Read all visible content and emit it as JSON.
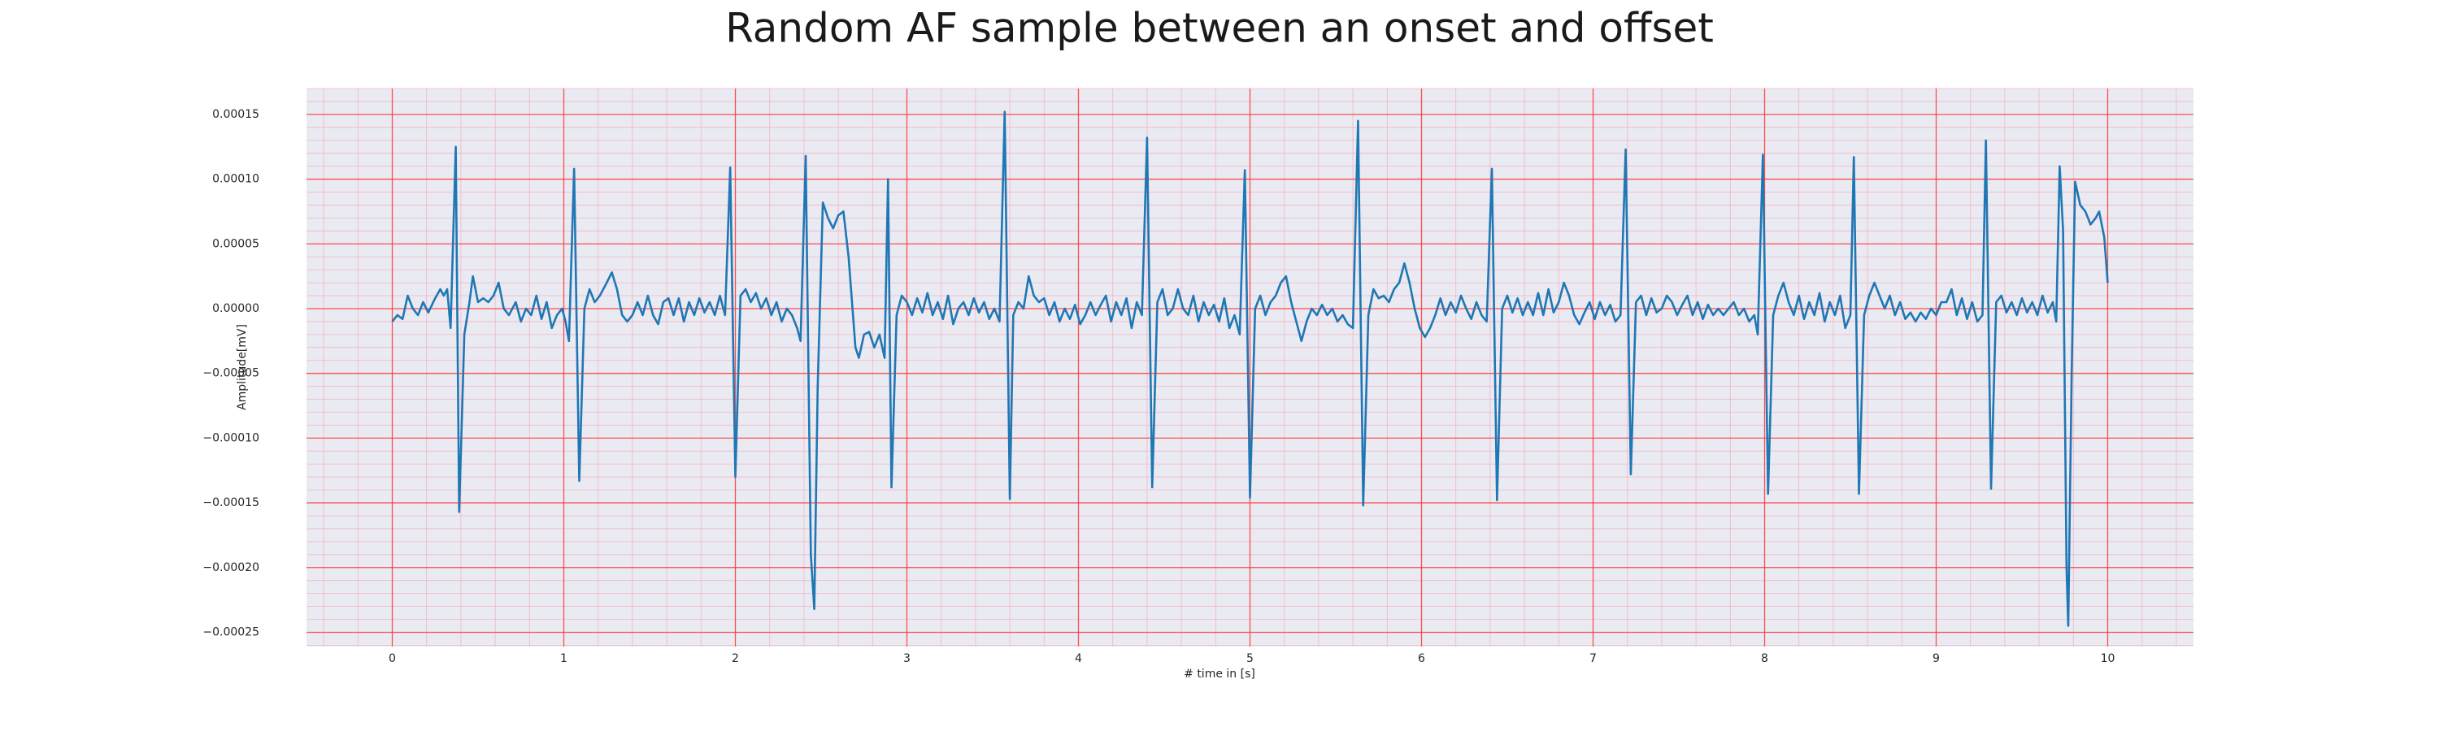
{
  "chart_data": {
    "type": "line",
    "title": "Random AF sample between an onset and offset",
    "xlabel": "# time in [s]",
    "ylabel": "Amplitude[mV]",
    "color": "#1f77b4",
    "grid": true,
    "minor_grid": true,
    "xlim": [
      -0.5,
      10.5
    ],
    "ylim": [
      -0.000261,
      0.00017
    ],
    "xticks": [
      0,
      1,
      2,
      3,
      4,
      5,
      6,
      7,
      8,
      9,
      10
    ],
    "yticks": [
      0.00015,
      {
        "value": 0.0001,
        "label": "0.00010"
      },
      5e-05,
      {
        "value": 0,
        "label": "0.00000"
      },
      {
        "value": -5e-05,
        "label": "−0.00005"
      },
      {
        "value": -0.0001,
        "label": "−0.00010"
      },
      {
        "value": -0.00015,
        "label": "−0.00015"
      },
      {
        "value": -0.0002,
        "label": "−0.00020"
      },
      {
        "value": -0.00025,
        "label": "−0.00025"
      }
    ],
    "x": [
      0.0,
      0.03,
      0.06,
      0.09,
      0.12,
      0.15,
      0.18,
      0.21,
      0.25,
      0.28,
      0.3,
      0.32,
      0.34,
      0.37,
      0.39,
      0.42,
      0.45,
      0.47,
      0.5,
      0.53,
      0.56,
      0.59,
      0.62,
      0.65,
      0.68,
      0.72,
      0.75,
      0.78,
      0.81,
      0.84,
      0.87,
      0.9,
      0.93,
      0.96,
      0.99,
      1.01,
      1.03,
      1.06,
      1.09,
      1.12,
      1.15,
      1.18,
      1.21,
      1.25,
      1.28,
      1.31,
      1.34,
      1.37,
      1.4,
      1.43,
      1.46,
      1.49,
      1.52,
      1.55,
      1.58,
      1.61,
      1.64,
      1.67,
      1.7,
      1.73,
      1.76,
      1.79,
      1.82,
      1.85,
      1.88,
      1.91,
      1.94,
      1.97,
      2.0,
      2.03,
      2.06,
      2.09,
      2.12,
      2.15,
      2.18,
      2.21,
      2.24,
      2.27,
      2.3,
      2.33,
      2.36,
      2.38,
      2.41,
      2.44,
      2.46,
      2.48,
      2.51,
      2.54,
      2.57,
      2.6,
      2.63,
      2.66,
      2.7,
      2.72,
      2.75,
      2.78,
      2.81,
      2.84,
      2.87,
      2.89,
      2.91,
      2.94,
      2.97,
      3.0,
      3.03,
      3.06,
      3.09,
      3.12,
      3.15,
      3.18,
      3.21,
      3.24,
      3.27,
      3.3,
      3.33,
      3.36,
      3.39,
      3.42,
      3.45,
      3.48,
      3.51,
      3.54,
      3.57,
      3.6,
      3.62,
      3.65,
      3.68,
      3.71,
      3.74,
      3.77,
      3.8,
      3.83,
      3.86,
      3.89,
      3.92,
      3.95,
      3.98,
      4.01,
      4.04,
      4.07,
      4.1,
      4.13,
      4.16,
      4.19,
      4.22,
      4.25,
      4.28,
      4.31,
      4.34,
      4.37,
      4.4,
      4.43,
      4.46,
      4.49,
      4.52,
      4.55,
      4.58,
      4.61,
      4.64,
      4.67,
      4.7,
      4.73,
      4.76,
      4.79,
      4.82,
      4.85,
      4.88,
      4.91,
      4.94,
      4.97,
      5.0,
      5.03,
      5.06,
      5.09,
      5.12,
      5.15,
      5.18,
      5.21,
      5.24,
      5.27,
      5.3,
      5.33,
      5.36,
      5.39,
      5.42,
      5.45,
      5.48,
      5.51,
      5.54,
      5.57,
      5.6,
      5.63,
      5.66,
      5.69,
      5.72,
      5.75,
      5.78,
      5.81,
      5.84,
      5.87,
      5.9,
      5.93,
      5.96,
      5.99,
      6.02,
      6.05,
      6.08,
      6.11,
      6.14,
      6.17,
      6.2,
      6.23,
      6.26,
      6.29,
      6.32,
      6.35,
      6.38,
      6.41,
      6.44,
      6.47,
      6.5,
      6.53,
      6.56,
      6.59,
      6.62,
      6.65,
      6.68,
      6.71,
      6.74,
      6.77,
      6.8,
      6.83,
      6.86,
      6.89,
      6.92,
      6.95,
      6.98,
      7.01,
      7.04,
      7.07,
      7.1,
      7.13,
      7.16,
      7.19,
      7.22,
      7.25,
      7.28,
      7.31,
      7.34,
      7.37,
      7.4,
      7.43,
      7.46,
      7.49,
      7.52,
      7.55,
      7.58,
      7.61,
      7.64,
      7.67,
      7.7,
      7.73,
      7.76,
      7.79,
      7.82,
      7.85,
      7.88,
      7.91,
      7.94,
      7.96,
      7.99,
      8.02,
      8.05,
      8.08,
      8.11,
      8.14,
      8.17,
      8.2,
      8.23,
      8.26,
      8.29,
      8.32,
      8.35,
      8.38,
      8.41,
      8.44,
      8.47,
      8.5,
      8.52,
      8.55,
      8.58,
      8.61,
      8.64,
      8.67,
      8.7,
      8.73,
      8.76,
      8.79,
      8.82,
      8.85,
      8.88,
      8.91,
      8.94,
      8.97,
      9.0,
      9.03,
      9.06,
      9.09,
      9.12,
      9.15,
      9.18,
      9.21,
      9.24,
      9.27,
      9.29,
      9.32,
      9.35,
      9.38,
      9.41,
      9.44,
      9.47,
      9.5,
      9.53,
      9.56,
      9.59,
      9.62,
      9.65,
      9.68,
      9.7,
      9.72,
      9.74,
      9.76,
      9.77,
      9.79,
      9.81,
      9.84,
      9.87,
      9.9,
      9.93,
      9.95,
      9.98,
      10.0
    ],
    "values": [
      -1e-05,
      -5e-06,
      -8e-06,
      1e-05,
      0,
      -5e-06,
      5e-06,
      -3e-06,
      8e-06,
      1.5e-05,
      1e-05,
      1.5e-05,
      -1.5e-05,
      0.000125,
      -0.000157,
      -2e-05,
      5e-06,
      2.5e-05,
      5e-06,
      8e-06,
      5e-06,
      1e-05,
      2e-05,
      0,
      -5e-06,
      5e-06,
      -1e-05,
      0,
      -5e-06,
      1e-05,
      -8e-06,
      5e-06,
      -1.5e-05,
      -5e-06,
      0,
      -1e-05,
      -2.5e-05,
      0.000108,
      -0.000133,
      0,
      1.5e-05,
      5e-06,
      1e-05,
      2e-05,
      2.8e-05,
      1.5e-05,
      -5e-06,
      -1e-05,
      -5e-06,
      5e-06,
      -5e-06,
      1e-05,
      -5e-06,
      -1.2e-05,
      5e-06,
      8e-06,
      -5e-06,
      8e-06,
      -1e-05,
      5e-06,
      -5e-06,
      8e-06,
      -3e-06,
      5e-06,
      -5e-06,
      1e-05,
      -5e-06,
      0.000109,
      -0.00013,
      1e-05,
      1.5e-05,
      5e-06,
      1.2e-05,
      0,
      8e-06,
      -5e-06,
      5e-06,
      -1e-05,
      0,
      -5e-06,
      -1.5e-05,
      -2.5e-05,
      0.000118,
      -0.00019,
      -0.000232,
      -6e-05,
      8.2e-05,
      7e-05,
      6.2e-05,
      7.2e-05,
      7.5e-05,
      4e-05,
      -3e-05,
      -3.8e-05,
      -2e-05,
      -1.8e-05,
      -3e-05,
      -2e-05,
      -3.8e-05,
      0.0001,
      -0.000138,
      -5e-06,
      1e-05,
      5e-06,
      -5e-06,
      8e-06,
      -3e-06,
      1.2e-05,
      -5e-06,
      5e-06,
      -8e-06,
      1e-05,
      -1.2e-05,
      0,
      5e-06,
      -5e-06,
      8e-06,
      -3e-06,
      5e-06,
      -8e-06,
      0,
      -1e-05,
      0.000152,
      -0.000147,
      -5e-06,
      5e-06,
      0,
      2.5e-05,
      1e-05,
      5e-06,
      8e-06,
      -5e-06,
      5e-06,
      -1e-05,
      0,
      -8e-06,
      3e-06,
      -1.2e-05,
      -5e-06,
      5e-06,
      -5e-06,
      3e-06,
      1e-05,
      -1e-05,
      5e-06,
      -5e-06,
      8e-06,
      -1.5e-05,
      5e-06,
      -5e-06,
      0.000132,
      -0.000138,
      5e-06,
      1.5e-05,
      -5e-06,
      0,
      1.5e-05,
      0,
      -5e-06,
      1e-05,
      -1e-05,
      5e-06,
      -5e-06,
      3e-06,
      -1e-05,
      8e-06,
      -1.5e-05,
      -5e-06,
      -2e-05,
      0.000107,
      -0.000146,
      0,
      1e-05,
      -5e-06,
      5e-06,
      1e-05,
      2e-05,
      2.5e-05,
      5e-06,
      -1e-05,
      -2.5e-05,
      -1e-05,
      0,
      -5e-06,
      3e-06,
      -5e-06,
      0,
      -1e-05,
      -5e-06,
      -1.2e-05,
      -1.5e-05,
      0.000145,
      -0.000152,
      -5e-06,
      1.5e-05,
      8e-06,
      1e-05,
      5e-06,
      1.5e-05,
      2e-05,
      3.5e-05,
      2e-05,
      0,
      -1.5e-05,
      -2.2e-05,
      -1.5e-05,
      -5e-06,
      8e-06,
      -5e-06,
      5e-06,
      -3e-06,
      1e-05,
      0,
      -8e-06,
      5e-06,
      -5e-06,
      -1e-05,
      0.000108,
      -0.000148,
      0,
      1e-05,
      -3e-06,
      8e-06,
      -5e-06,
      5e-06,
      -5e-06,
      1.2e-05,
      -5e-06,
      1.5e-05,
      -3e-06,
      5e-06,
      2e-05,
      1e-05,
      -5e-06,
      -1.2e-05,
      -3e-06,
      5e-06,
      -8e-06,
      5e-06,
      -5e-06,
      3e-06,
      -1e-05,
      -5e-06,
      0.000123,
      -0.000128,
      5e-06,
      1e-05,
      -5e-06,
      8e-06,
      -3e-06,
      0,
      1e-05,
      5e-06,
      -5e-06,
      3e-06,
      1e-05,
      -5e-06,
      5e-06,
      -8e-06,
      3e-06,
      -5e-06,
      0,
      -5e-06,
      0,
      5e-06,
      -5e-06,
      0,
      -1e-05,
      -5e-06,
      -2e-05,
      0.000119,
      -0.000143,
      -5e-06,
      1e-05,
      2e-05,
      5e-06,
      -5e-06,
      1e-05,
      -8e-06,
      5e-06,
      -5e-06,
      1.2e-05,
      -1e-05,
      5e-06,
      -5e-06,
      1e-05,
      -1.5e-05,
      -5e-06,
      0.000117,
      -0.000143,
      -5e-06,
      1e-05,
      2e-05,
      1e-05,
      0,
      1e-05,
      -5e-06,
      5e-06,
      -8e-06,
      -3e-06,
      -1e-05,
      -3e-06,
      -8e-06,
      0,
      -5e-06,
      5e-06,
      5e-06,
      1.5e-05,
      -5e-06,
      8e-06,
      -8e-06,
      5e-06,
      -1e-05,
      -5e-06,
      0.00013,
      -0.000139,
      5e-06,
      1e-05,
      -3e-06,
      5e-06,
      -5e-06,
      8e-06,
      -3e-06,
      5e-06,
      -5e-06,
      1e-05,
      -3e-06,
      5e-06,
      -1e-05,
      0.00011,
      6e-05,
      -0.0002,
      -0.000245,
      -5e-05,
      9.8e-05,
      8e-05,
      7.5e-05,
      6.5e-05,
      7e-05,
      7.5e-05,
      5.5e-05,
      2e-05
    ]
  }
}
